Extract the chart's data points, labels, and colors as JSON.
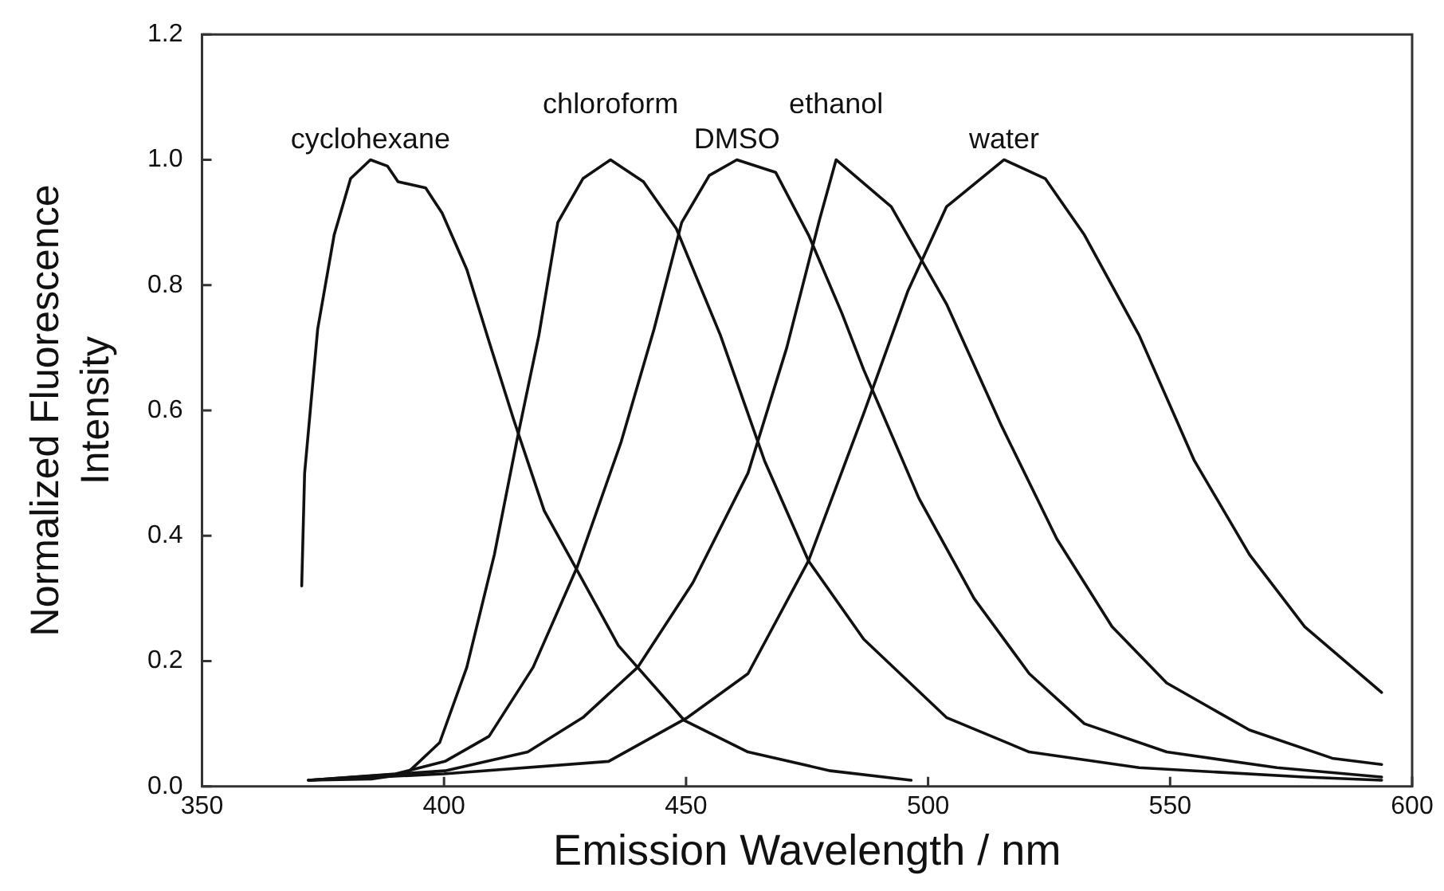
{
  "chart_data": {
    "type": "line",
    "xlabel": "Emission Wavelength / nm",
    "ylabel": "Normalized Fluorescence Intensity",
    "xlim": [
      350,
      600
    ],
    "xticks": [
      350,
      400,
      450,
      500,
      550,
      600
    ],
    "ylim": [
      0,
      1.2
    ],
    "yticks": [
      {
        "value": 0,
        "label": "0.0"
      },
      {
        "value": 0.2,
        "label": "0.2"
      },
      {
        "value": 0.4,
        "label": "0.4"
      },
      {
        "value": 0.6,
        "label": "0.6"
      },
      {
        "value": 0.8,
        "label": "0.8"
      },
      {
        "value": 1.0,
        "label": "1.0"
      },
      {
        "value": 1.2,
        "label": "1.2"
      }
    ],
    "grid": false,
    "legend": false,
    "marker": "none",
    "line_style": "solid",
    "series": [
      {
        "name": "cyclohexane",
        "color": "#111111",
        "x": [
          370.6,
          371.2,
          373.9,
          377.3,
          380.7,
          384.8,
          388.3,
          390.5,
          396.2,
          399.6,
          404.7,
          409.3,
          414.4,
          420.7,
          427.5,
          436,
          449.7,
          462.8,
          479.8,
          496.5
        ],
        "values": [
          0.32,
          0.5,
          0.73,
          0.88,
          0.97,
          1.0,
          0.99,
          0.965,
          0.955,
          0.915,
          0.825,
          0.71,
          0.585,
          0.44,
          0.345,
          0.225,
          0.105,
          0.055,
          0.025,
          0.01
        ]
      },
      {
        "name": "chloroform",
        "color": "#111111",
        "x": [
          372,
          385,
          392.2,
          399.1,
          404.7,
          410.4,
          415,
          419.6,
          423.5,
          428.7,
          434.4,
          441.2,
          448,
          457.1,
          466.2,
          475.3,
          486.7,
          503.8,
          520.9,
          543.6,
          577.8,
          593.7
        ],
        "values": [
          0.01,
          0.012,
          0.02,
          0.07,
          0.19,
          0.37,
          0.55,
          0.72,
          0.9,
          0.97,
          1.0,
          0.965,
          0.89,
          0.72,
          0.52,
          0.36,
          0.235,
          0.11,
          0.055,
          0.03,
          0.015,
          0.01
        ]
      },
      {
        "name": "DMSO",
        "color": "#111111",
        "x": [
          372,
          390,
          400.2,
          409.3,
          418.4,
          427.5,
          436.6,
          443.4,
          449.1,
          454.8,
          460.5,
          468.5,
          475.3,
          482.2,
          486.7,
          498.1,
          509.5,
          520.9,
          532.3,
          549.3,
          572.1,
          593.7
        ],
        "values": [
          0.01,
          0.02,
          0.04,
          0.08,
          0.19,
          0.35,
          0.55,
          0.73,
          0.9,
          0.975,
          1.0,
          0.98,
          0.88,
          0.755,
          0.665,
          0.46,
          0.3,
          0.18,
          0.1,
          0.055,
          0.03,
          0.015
        ]
      },
      {
        "name": "ethanol",
        "color": "#111111",
        "x": [
          372,
          400.2,
          417.3,
          428.7,
          440,
          451.4,
          462.8,
          470.8,
          477.6,
          481,
          492.4,
          503.8,
          515.2,
          526.6,
          538,
          549.3,
          566.4,
          583.5,
          593.7
        ],
        "values": [
          0.01,
          0.025,
          0.055,
          0.11,
          0.19,
          0.325,
          0.5,
          0.7,
          0.905,
          1.0,
          0.925,
          0.77,
          0.575,
          0.395,
          0.255,
          0.165,
          0.09,
          0.045,
          0.035
        ]
      },
      {
        "name": "water",
        "color": "#111111",
        "x": [
          372,
          400,
          434,
          450.3,
          462.8,
          475.3,
          486.7,
          495.8,
          503.8,
          515.7,
          524.2,
          532.3,
          543.6,
          555,
          566.4,
          577.8,
          593.7
        ],
        "values": [
          0.01,
          0.02,
          0.04,
          0.11,
          0.18,
          0.36,
          0.595,
          0.79,
          0.925,
          1.0,
          0.97,
          0.88,
          0.72,
          0.52,
          0.37,
          0.255,
          0.15
        ]
      }
    ]
  }
}
